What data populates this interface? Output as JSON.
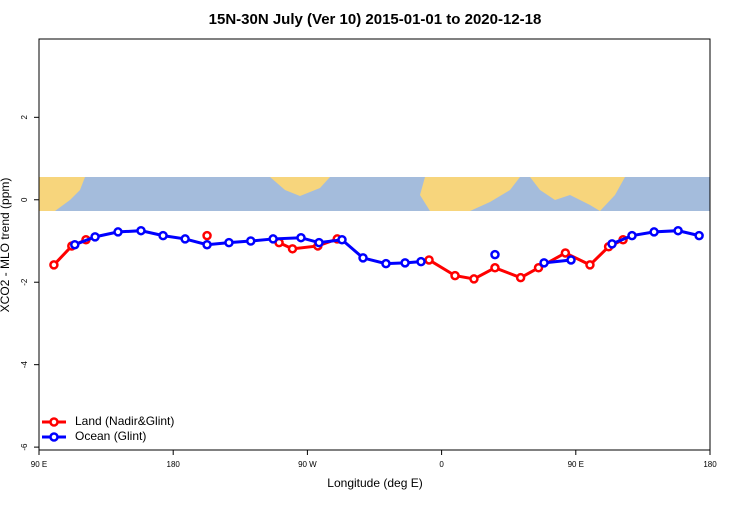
{
  "chart_data": {
    "type": "line",
    "title": "15N-30N July (Ver 10)   2015-01-01 to 2020-12-18",
    "x_label": "Longitude (deg E)",
    "y_label": "XCO2 - MLO trend (ppm)",
    "xlim": [
      90,
      540
    ],
    "ylim": [
      -6.07,
      3.9
    ],
    "xticks": [
      {
        "value": 90,
        "label": "90 E"
      },
      180,
      {
        "value": 270,
        "label": "90 W"
      },
      {
        "value": 360,
        "label": "0"
      },
      {
        "value": 450,
        "label": "90 E"
      },
      {
        "value": 540,
        "label": "180"
      }
    ],
    "yticks": [
      -6,
      -4,
      -2,
      0,
      2
    ],
    "legend": "bottom-left",
    "series": [
      {
        "name": "Land (Nadir&Glint)",
        "color": "#ff0000",
        "x": [
          100,
          112,
          121.5,
          null,
          202.7,
          null,
          251,
          260,
          277,
          290,
          null,
          351.6,
          369,
          381.7,
          395.8,
          413,
          425,
          443,
          459.5,
          472,
          481.7
        ],
        "values": [
          -1.58,
          -1.12,
          -0.97,
          null,
          -0.87,
          null,
          -1.04,
          -1.19,
          -1.12,
          -0.95,
          null,
          -1.46,
          -1.84,
          -1.92,
          -1.65,
          -1.89,
          -1.65,
          -1.29,
          -1.58,
          -1.14,
          -0.97
        ]
      },
      {
        "name": "Ocean (Glint)",
        "color": "#0000ff",
        "x": [
          114,
          127.6,
          143,
          158.4,
          173.2,
          188,
          202.7,
          217.4,
          232,
          247,
          265.7,
          277.8,
          293.2,
          307.3,
          322.7,
          335.5,
          346.2,
          null,
          395.8,
          null,
          428.7,
          446.8,
          null,
          474.3,
          487.7,
          502.5,
          518.6,
          532.7
        ],
        "values": [
          -1.09,
          -0.9,
          -0.78,
          -0.75,
          -0.87,
          -0.95,
          -1.09,
          -1.04,
          -1.0,
          -0.95,
          -0.92,
          -1.04,
          -0.97,
          -1.41,
          -1.55,
          -1.53,
          -1.5,
          null,
          -1.33,
          null,
          -1.53,
          -1.46,
          null,
          -1.07,
          -0.87,
          -0.78,
          -0.75,
          -0.87
        ]
      }
    ]
  }
}
